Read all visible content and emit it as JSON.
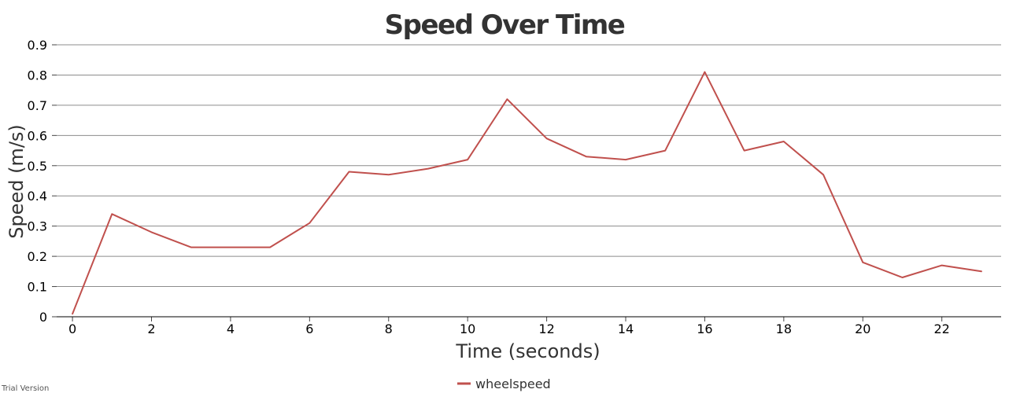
{
  "watermark": "Trial Version",
  "chart_data": {
    "type": "line",
    "title": "Speed Over Time",
    "xlabel": "Time (seconds)",
    "ylabel": "Speed (m/s)",
    "xlim": [
      -0.4,
      23.5
    ],
    "ylim": [
      0,
      0.9
    ],
    "x_ticks": [
      0,
      2,
      4,
      6,
      8,
      10,
      12,
      14,
      16,
      18,
      20,
      22
    ],
    "y_ticks": [
      0,
      0.1,
      0.2,
      0.3,
      0.4,
      0.5,
      0.6,
      0.7,
      0.8,
      0.9
    ],
    "grid": "horizontal",
    "legend_position": "bottom-center",
    "series": [
      {
        "name": "wheelspeed",
        "color": "#c0504d",
        "x": [
          0,
          1,
          2,
          3,
          4,
          5,
          6,
          7,
          8,
          9,
          10,
          11,
          12,
          13,
          14,
          15,
          16,
          17,
          18,
          19,
          20,
          21,
          22,
          23
        ],
        "values": [
          0.01,
          0.34,
          0.28,
          0.23,
          0.23,
          0.23,
          0.31,
          0.48,
          0.47,
          0.49,
          0.52,
          0.72,
          0.59,
          0.53,
          0.52,
          0.55,
          0.81,
          0.55,
          0.58,
          0.47,
          0.18,
          0.13,
          0.17,
          0.15
        ]
      }
    ]
  }
}
